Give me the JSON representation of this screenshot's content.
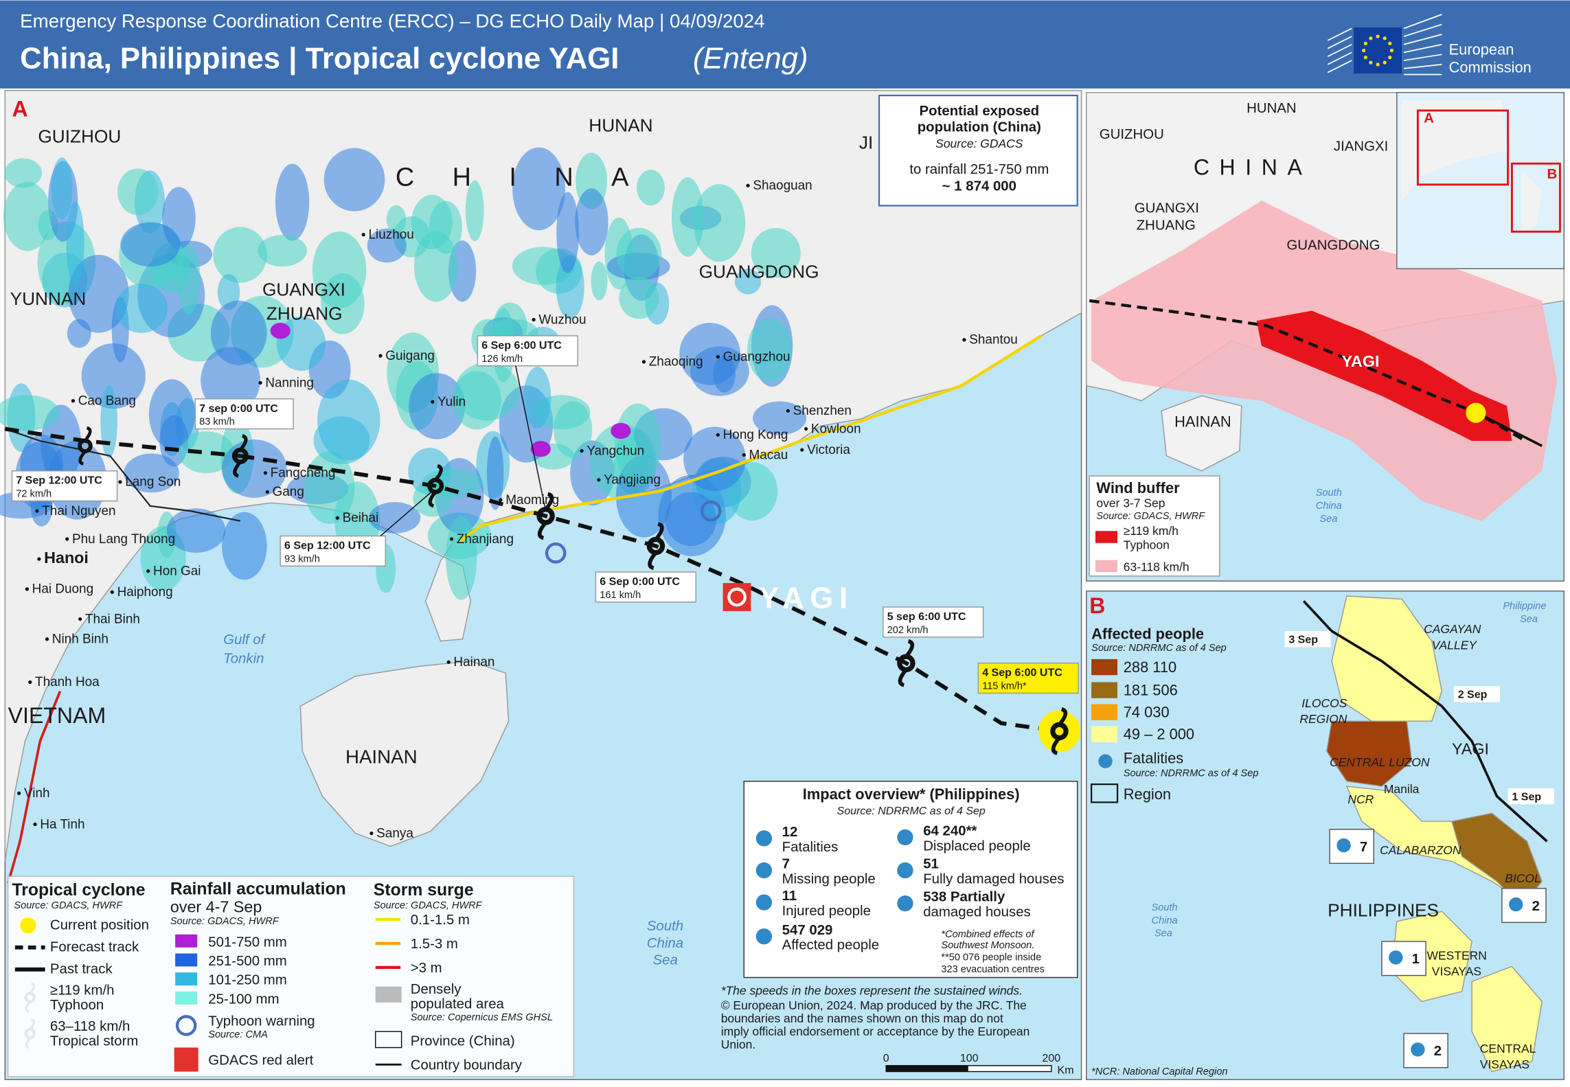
{
  "header": {
    "line": "Emergency Response Coordination Centre (ERCC) – DG ECHO Daily Map | 04/09/2024",
    "title": "China, Philippines | Tropical cyclone YAGI",
    "title_alt": "(Enteng)",
    "logo": [
      "European",
      "Commission"
    ]
  },
  "panel_a": {
    "letter": "A",
    "regions": [
      "GUIZHOU",
      "HUNAN",
      "JI",
      "CHINA",
      "YUNNAN",
      "GUANGXI",
      "ZHUANG",
      "GUANGDONG",
      "VIETNAM",
      "HAINAN"
    ],
    "cities": [
      "Liuzhou",
      "Shaoguan",
      "Wuzhou",
      "Guigang",
      "Nanning",
      "Yulin",
      "Zhaoqing",
      "Guangzhou",
      "Shantou",
      "Shenzhen",
      "Kowloon",
      "Hong Kong",
      "Macau",
      "Victoria",
      "Yangchun",
      "Yangjiang",
      "Maoming",
      "Zhanjiang",
      "Beihai",
      "Fangcheng",
      "Gang",
      "Cao Bang",
      "Lang Son",
      "Thai Nguyen",
      "Phu Lang Thuong",
      "Hanoi",
      "Hon Gai",
      "Hai Duong",
      "Haiphong",
      "Thai Binh",
      "Ninh Binh",
      "Thanh Hoa",
      "Vinh",
      "Ha Tinh",
      "Hainan",
      "Sanya"
    ],
    "water": [
      "Gulf of",
      "Tonkin",
      "South",
      "China",
      "Sea"
    ],
    "storm_name": "YAGI",
    "track": [
      {
        "time": "7 Sep 12:00 UTC",
        "speed": "72 km/h"
      },
      {
        "time": "7 sep 0:00 UTC",
        "speed": "83 km/h"
      },
      {
        "time": "6 Sep 12:00 UTC",
        "speed": "93 km/h"
      },
      {
        "time": "6 Sep 6:00 UTC",
        "speed": "126 km/h"
      },
      {
        "time": "6 Sep 0:00 UTC",
        "speed": "161 km/h"
      },
      {
        "time": "5 sep 6:00 UTC",
        "speed": "202 km/h"
      },
      {
        "time": "4 Sep 6:00 UTC",
        "speed": "115 km/h*"
      }
    ],
    "exposure": [
      "Potential exposed",
      "population (China)",
      "Source: GDACS",
      "to rainfall 251-750 mm",
      "~ 1 874 000"
    ],
    "legend": {
      "cyclone": {
        "title": "Tropical cyclone",
        "source": "Source: GDACS, HWRF",
        "items": [
          "Current position",
          "Forecast track",
          "Past track",
          "≥119 km/h",
          "Typhoon",
          "63–118 km/h",
          "Tropical storm"
        ]
      },
      "rainfall": {
        "title": "Rainfall accumulation",
        "period": "over 4-7 Sep",
        "source": "Source: GDACS, HWRF",
        "classes": [
          "501-750 mm",
          "251-500 mm",
          "101-250 mm",
          "25-100 mm"
        ],
        "warning": "Typhoon warning",
        "warning_source": "Source: CMA",
        "alert": "GDACS red alert"
      },
      "surge": {
        "title": "Storm surge",
        "source": "Source: GDACS, HWRF",
        "classes": [
          "0.1-1.5 m",
          "1.5-3 m",
          ">3 m"
        ],
        "dense": [
          "Densely",
          "populated area"
        ],
        "dense_source": "Source: Copernicus EMS GHSL",
        "province": "Province (China)",
        "boundary": "Country boundary"
      }
    },
    "impact": {
      "title": "Impact overview* (Philippines)",
      "source": "Source: NDRRMC as of 4 Sep",
      "items": [
        {
          "value": "12",
          "label": "Fatalities"
        },
        {
          "value": "7",
          "label": "Missing people"
        },
        {
          "value": "11",
          "label": "Injured people"
        },
        {
          "value": "547 029",
          "label": "Affected people"
        },
        {
          "value": "64 240**",
          "label": "Displaced people"
        },
        {
          "value": "51",
          "label": "Fully damaged houses"
        },
        {
          "value": "538 Partially",
          "label": "damaged houses"
        }
      ],
      "notes": [
        "*Combined effects of",
        "Southwest Monsoon.",
        "**50 076 people inside",
        "323 evacuation centres"
      ]
    },
    "disclaimer": [
      "*The speeds in the boxes represent the sustained winds.",
      "© European Union, 2024. Map produced by the JRC. The",
      "boundaries and the names shown on this map do not",
      "imply official endorsement or acceptance by the European",
      "Union."
    ],
    "scale": {
      "ticks": [
        "0",
        "100",
        "200"
      ],
      "unit": "Km"
    }
  },
  "inset": {
    "labels": [
      "HUNAN",
      "GUIZHOU",
      "CHINA",
      "JIANGXI",
      "GUANGXI",
      "ZHUANG",
      "GUANGDONG",
      "YAGI",
      "HAINAN",
      "South",
      "China",
      "Sea",
      "A",
      "B"
    ],
    "wind": {
      "title": "Wind buffer",
      "period": "over 3-7 Sep",
      "source": "Source: GDACS, HWRF",
      "classes": [
        "≥119 km/h",
        "Typhoon",
        "63-118 km/h"
      ]
    }
  },
  "panel_b": {
    "letter": "B",
    "legend_title": "Affected people",
    "source": "Source: NDRRMC as of 4 Sep",
    "classes": [
      "288 110",
      "181 506",
      "74 030",
      "49 – 2 000"
    ],
    "fatalities": "Fatalities",
    "fatalities_source": "Source: NDRRMC as of 4 Sep",
    "region": "Region",
    "labels": [
      "CAGAYAN",
      "VALLEY",
      "ILOCOS",
      "REGION",
      "CENTRAL LUZON",
      "NCR",
      "Manila",
      "CALABARZON",
      "BICOL",
      "PHILIPPINES",
      "WESTERN",
      "VISAYAS",
      "CENTRAL",
      "VISAYAS",
      "YAGI",
      "Philippine",
      "Sea",
      "South",
      "China",
      "Sea"
    ],
    "dates": [
      "3 Sep",
      "2 Sep",
      "1 Sep"
    ],
    "fatality_counts": [
      "7",
      "2",
      "1",
      "2"
    ],
    "footnote": "*NCR: National Capital Region"
  }
}
